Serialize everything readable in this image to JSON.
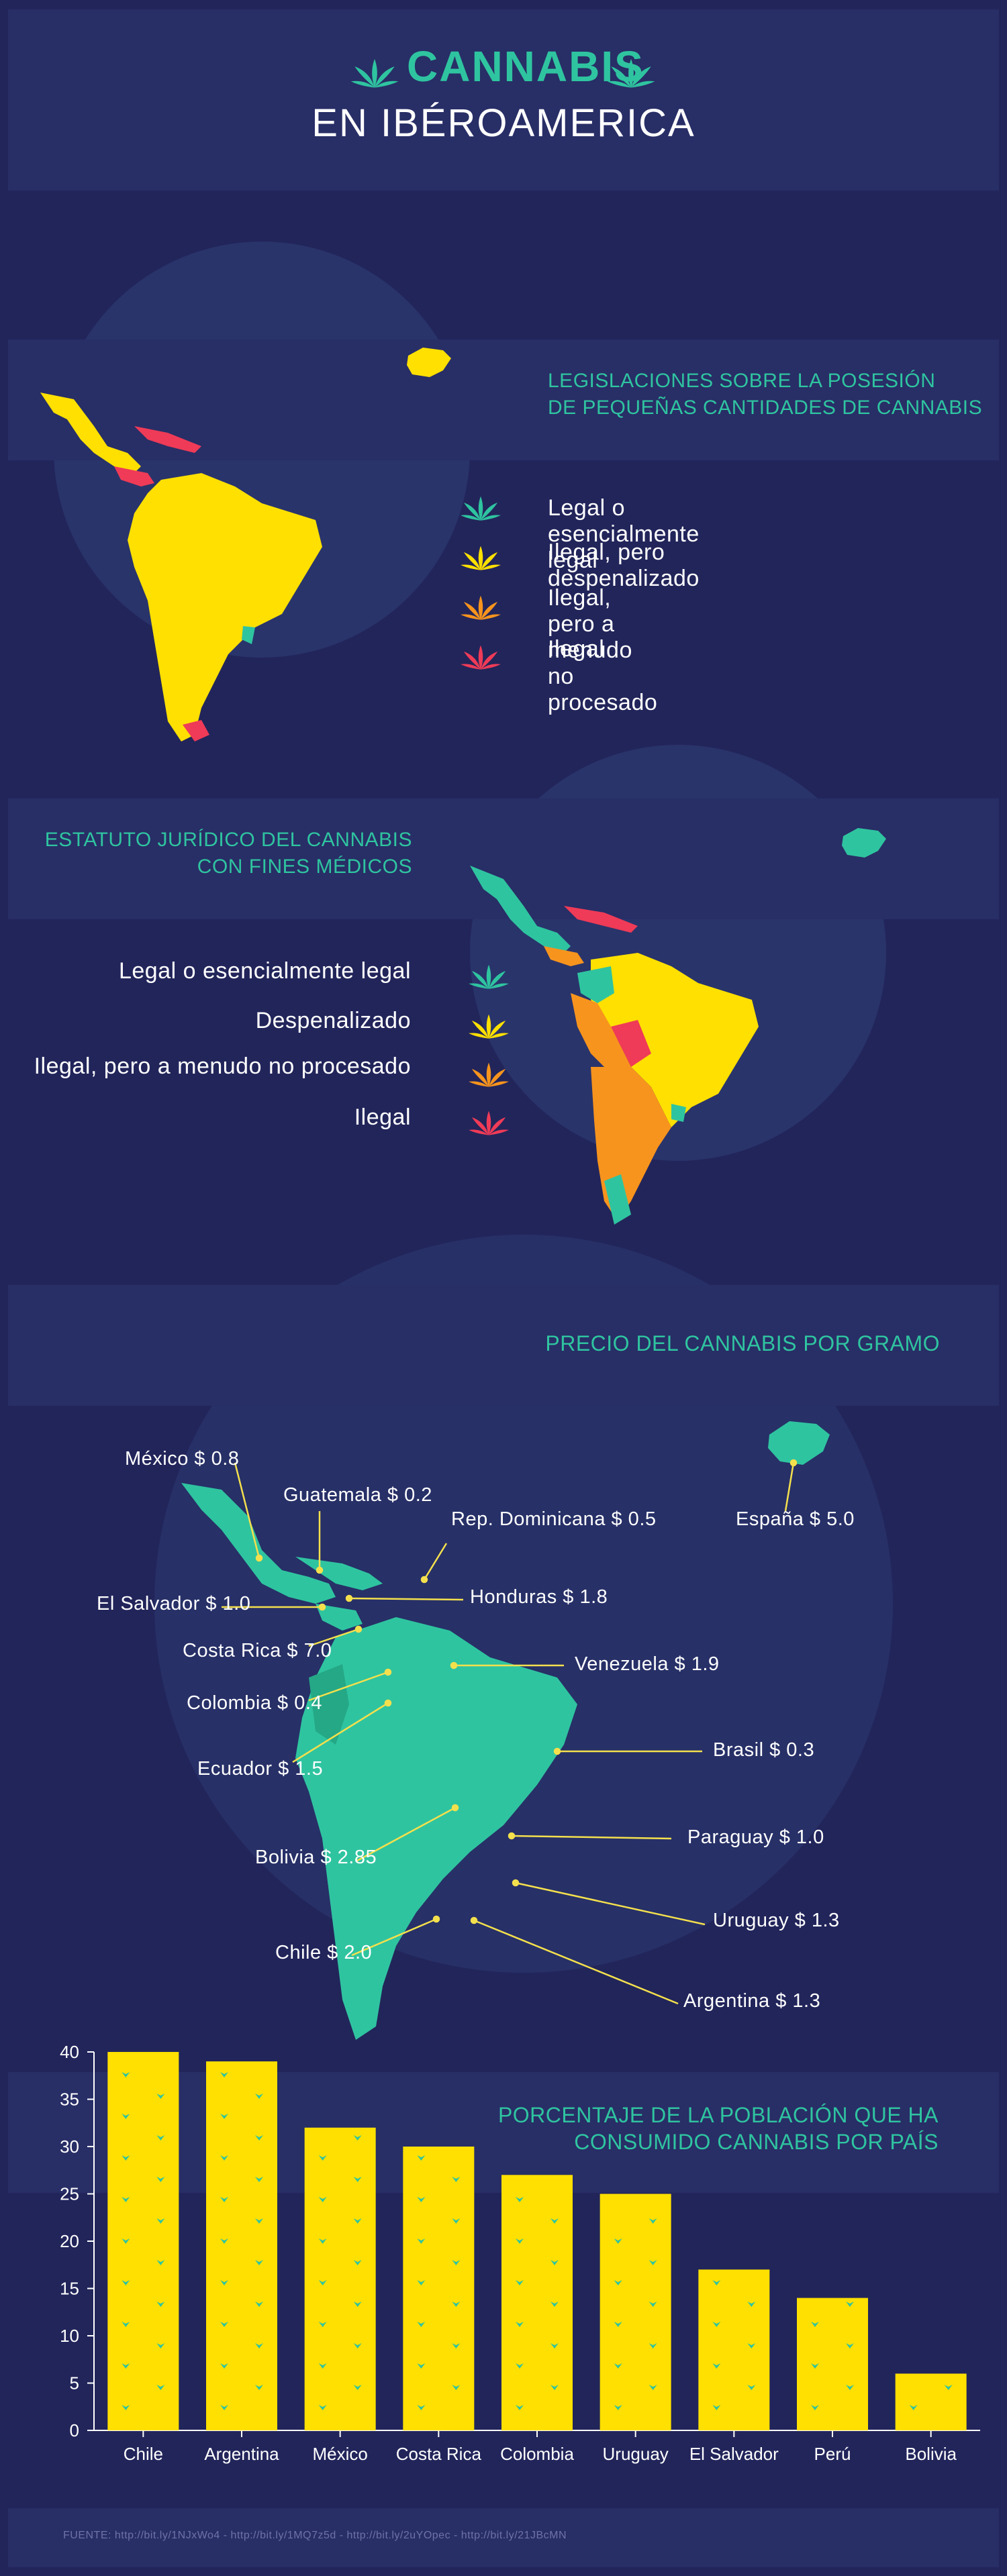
{
  "header": {
    "title_line1": "CANNABIS",
    "title_line2": "EN IBÉROAMERICA"
  },
  "colors": {
    "background": "#22255a",
    "band": "#282e66",
    "teal": "#2fc4a0",
    "yellow": "#ffe000",
    "orange": "#f7941d",
    "red": "#ef3b57",
    "leader": "#f4e04d"
  },
  "section1": {
    "title_line1": "LEGISLACIONES SOBRE LA POSESIÓN",
    "title_line2": "DE PEQUEÑAS CANTIDADES DE CANNABIS",
    "legend": [
      {
        "label": "Legal o esencialmente legal",
        "color": "#2fc4a0",
        "icon": "leaf-icon"
      },
      {
        "label": "Ilegal, pero despenalizado",
        "color": "#ffe000",
        "icon": "leaf-icon"
      },
      {
        "label": "Ilegal, pero a menudo no procesado",
        "color": "#f7941d",
        "icon": "leaf-icon"
      },
      {
        "label": "Ilegal",
        "color": "#ef3b57",
        "icon": "leaf-icon"
      }
    ]
  },
  "section2": {
    "title_line1": "ESTATUTO JURÍDICO DEL CANNABIS",
    "title_line2": "CON FINES MÉDICOS",
    "legend": [
      {
        "label": "Legal o esencialmente legal",
        "color": "#2fc4a0",
        "icon": "leaf-icon"
      },
      {
        "label": "Despenalizado",
        "color": "#ffe000",
        "icon": "leaf-icon"
      },
      {
        "label": "Ilegal, pero a menudo no procesado",
        "color": "#f7941d",
        "icon": "leaf-icon"
      },
      {
        "label": "Ilegal",
        "color": "#ef3b57",
        "icon": "leaf-icon"
      }
    ]
  },
  "section3": {
    "title": "PRECIO DEL CANNABIS POR GRAMO",
    "prices": {
      "mexico": "México $ 0.8",
      "guatemala": "Guatemala $ 0.2",
      "rep_dominicana": "Rep. Dominicana $ 0.5",
      "el_salvador": "El Salvador $ 1.0",
      "honduras": "Honduras $ 1.8",
      "costa_rica": "Costa Rica $ 7.0",
      "venezuela": "Venezuela $ 1.9",
      "colombia": "Colombia $ 0.4",
      "ecuador": "Ecuador $ 1.5",
      "brasil": "Brasil $ 0.3",
      "bolivia": "Bolivia $ 2.85",
      "paraguay": "Paraguay $ 1.0",
      "uruguay": "Uruguay $ 1.3",
      "chile": "Chile $ 2.0",
      "argentina": "Argentina $ 1.3",
      "espana": "España $ 5.0"
    }
  },
  "section4": {
    "title_line1": "PORCENTAJE DE LA POBLACIÓN QUE HA",
    "title_line2": "CONSUMIDO CANNABIS POR PAÍS"
  },
  "chart_data": {
    "type": "bar",
    "title": "PORCENTAJE DE LA POBLACIÓN QUE HA CONSUMIDO CANNABIS POR PAÍS",
    "categories": [
      "Chile",
      "Argentina",
      "México",
      "Costa Rica",
      "Colombia",
      "Uruguay",
      "El Salvador",
      "Perú",
      "Bolivia"
    ],
    "values": [
      40,
      39,
      32,
      30,
      27,
      25,
      17,
      14,
      6
    ],
    "yticks": [
      "0",
      "5",
      "10",
      "15",
      "20",
      "25",
      "30",
      "35",
      "40"
    ],
    "ylim": [
      0,
      40
    ],
    "bar_color": "#ffe000",
    "grid": false
  },
  "footer": {
    "sources": "FUENTE: http://bit.ly/1NJxWo4 - http://bit.ly/1MQ7z5d - http://bit.ly/2uYOpec - http://bit.ly/21JBcMN"
  }
}
